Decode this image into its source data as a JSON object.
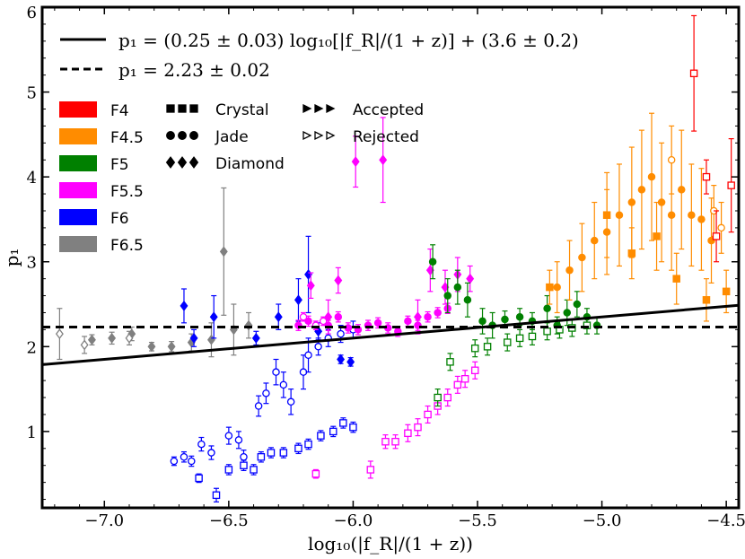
{
  "chart_data": {
    "type": "scatter",
    "title": "",
    "xlabel": "log₁₀(|f_R|/(1 + z))",
    "ylabel": "p₁",
    "xlim": [
      -7.25,
      -4.45
    ],
    "ylim": [
      0.1,
      6.0
    ],
    "grid": false,
    "legend_placement": "top-left",
    "xticks": [
      -7.0,
      -6.5,
      -6.0,
      -5.5,
      -5.0,
      -4.5
    ],
    "xtick_labels": [
      "−7.0",
      "−6.5",
      "−6.0",
      "−5.5",
      "−5.0",
      "−4.5"
    ],
    "yticks": [
      1,
      2,
      3,
      4,
      5,
      6
    ],
    "ytick_labels": [
      "1",
      "2",
      "3",
      "4",
      "5",
      "6"
    ],
    "fit_lines": [
      {
        "label": "p₁ = (0.25 ± 0.03) log₁₀[|f_R|/(1 + z)] + (3.6 ± 0.2)",
        "style": "solid",
        "slope": 0.25,
        "intercept": 3.6
      },
      {
        "label": "p₁ = 2.23 ± 0.02",
        "style": "dashed",
        "slope": 0,
        "intercept": 2.23
      }
    ],
    "color_legend": [
      {
        "name": "F4",
        "color": "#ff0000"
      },
      {
        "name": "F4.5",
        "color": "#ff8c00"
      },
      {
        "name": "F5",
        "color": "#008000"
      },
      {
        "name": "F5.5",
        "color": "#ff00ff"
      },
      {
        "name": "F6",
        "color": "#0000ff"
      },
      {
        "name": "F6.5",
        "color": "#808080"
      }
    ],
    "marker_legend": [
      {
        "name": "Crystal",
        "marker": "square"
      },
      {
        "name": "Jade",
        "marker": "circle"
      },
      {
        "name": "Diamond",
        "marker": "diamond"
      }
    ],
    "fill_legend": [
      {
        "name": "Accepted",
        "filled": true
      },
      {
        "name": "Rejected",
        "filled": false
      }
    ],
    "series": [
      {
        "name": "F6.5",
        "color": "#808080",
        "marker": "diamond",
        "filled": true,
        "x": [
          -7.05,
          -6.97,
          -6.89,
          -6.81,
          -6.73,
          -6.65,
          -6.57,
          -6.52,
          -6.48,
          -6.42
        ],
        "y": [
          2.08,
          2.1,
          2.15,
          2.0,
          2.0,
          2.05,
          2.08,
          3.12,
          2.2,
          2.25
        ],
        "err": [
          0.06,
          0.07,
          0.08,
          0.05,
          0.06,
          0.1,
          0.2,
          0.75,
          0.3,
          0.15
        ]
      },
      {
        "name": "F6.5",
        "color": "#808080",
        "marker": "diamond",
        "filled": false,
        "x": [
          -7.18,
          -7.08,
          -6.9
        ],
        "y": [
          2.15,
          2.02,
          2.1
        ],
        "err": [
          0.3,
          0.1,
          0.08
        ]
      },
      {
        "name": "F6",
        "color": "#0000ff",
        "marker": "diamond",
        "filled": true,
        "x": [
          -6.68,
          -6.64,
          -6.56,
          -6.39,
          -6.3,
          -6.22,
          -6.18,
          -6.14,
          -6.05,
          -6.01
        ],
        "y": [
          2.48,
          2.1,
          2.35,
          2.1,
          2.35,
          2.55,
          2.85,
          2.18,
          1.85,
          1.82
        ],
        "err": [
          0.2,
          0.1,
          0.25,
          0.08,
          0.15,
          0.25,
          0.45,
          0.1,
          0.05,
          0.05
        ]
      },
      {
        "name": "F6",
        "color": "#0000ff",
        "marker": "circle",
        "filled": false,
        "x": [
          -6.72,
          -6.68,
          -6.65,
          -6.61,
          -6.57,
          -6.5,
          -6.46,
          -6.44,
          -6.38,
          -6.35,
          -6.31,
          -6.28,
          -6.25,
          -6.2,
          -6.18,
          -6.14,
          -6.1,
          -6.05,
          -6.0
        ],
        "y": [
          0.65,
          0.7,
          0.65,
          0.85,
          0.75,
          0.95,
          0.9,
          0.7,
          1.3,
          1.45,
          1.7,
          1.55,
          1.35,
          1.7,
          1.9,
          2.0,
          2.1,
          2.15,
          2.2
        ],
        "err": [
          0.05,
          0.06,
          0.06,
          0.08,
          0.08,
          0.1,
          0.1,
          0.08,
          0.12,
          0.12,
          0.15,
          0.15,
          0.15,
          0.2,
          0.2,
          0.1,
          0.1,
          0.1,
          0.1
        ]
      },
      {
        "name": "F6",
        "color": "#0000ff",
        "marker": "square",
        "filled": false,
        "x": [
          -6.62,
          -6.55,
          -6.5,
          -6.44,
          -6.4,
          -6.37,
          -6.33,
          -6.28,
          -6.22,
          -6.18,
          -6.13,
          -6.08,
          -6.04,
          -6.0
        ],
        "y": [
          0.45,
          0.25,
          0.55,
          0.6,
          0.55,
          0.7,
          0.75,
          0.75,
          0.8,
          0.85,
          0.95,
          1.0,
          1.1,
          1.05
        ],
        "err": [
          0.05,
          0.08,
          0.06,
          0.06,
          0.06,
          0.06,
          0.06,
          0.06,
          0.06,
          0.06,
          0.06,
          0.06,
          0.06,
          0.06
        ]
      },
      {
        "name": "F5.5",
        "color": "#ff00ff",
        "marker": "diamond",
        "filled": true,
        "x": [
          -6.17,
          -6.1,
          -6.06,
          -5.99,
          -5.88,
          -5.74,
          -5.69,
          -5.63,
          -5.58,
          -5.53
        ],
        "y": [
          2.72,
          2.35,
          2.78,
          4.18,
          4.2,
          2.35,
          2.9,
          2.7,
          2.85,
          2.8
        ],
        "err": [
          0.15,
          0.2,
          0.15,
          0.3,
          0.5,
          0.2,
          0.25,
          0.2,
          0.2,
          0.15
        ]
      },
      {
        "name": "F5.5",
        "color": "#ff00ff",
        "marker": "circle",
        "filled": true,
        "x": [
          -6.22,
          -6.18,
          -6.1,
          -6.06,
          -6.02,
          -5.98,
          -5.94,
          -5.9,
          -5.86,
          -5.82,
          -5.78,
          -5.74,
          -5.7,
          -5.66,
          -5.62
        ],
        "y": [
          2.25,
          2.3,
          2.25,
          2.35,
          2.22,
          2.2,
          2.25,
          2.28,
          2.22,
          2.18,
          2.3,
          2.25,
          2.35,
          2.4,
          2.45
        ],
        "err": [
          0.06,
          0.06,
          0.06,
          0.06,
          0.06,
          0.06,
          0.06,
          0.06,
          0.06,
          0.06,
          0.06,
          0.06,
          0.06,
          0.06,
          0.06
        ]
      },
      {
        "name": "F5.5",
        "color": "#ff00ff",
        "marker": "circle",
        "filled": false,
        "x": [
          -6.2,
          -6.15,
          -6.12
        ],
        "y": [
          2.35,
          2.25,
          2.3
        ],
        "err": [
          0.05,
          0.05,
          0.05
        ]
      },
      {
        "name": "F5.5",
        "color": "#ff00ff",
        "marker": "square",
        "filled": false,
        "x": [
          -6.15,
          -5.93,
          -5.87,
          -5.83,
          -5.78,
          -5.74,
          -5.7,
          -5.66,
          -5.62,
          -5.58,
          -5.55,
          -5.51
        ],
        "y": [
          0.5,
          0.55,
          0.88,
          0.88,
          0.98,
          1.05,
          1.2,
          1.3,
          1.4,
          1.55,
          1.62,
          1.72
        ],
        "err": [
          0.05,
          0.1,
          0.08,
          0.08,
          0.1,
          0.1,
          0.1,
          0.1,
          0.1,
          0.1,
          0.1,
          0.1
        ]
      },
      {
        "name": "F5",
        "color": "#008000",
        "marker": "circle",
        "filled": true,
        "x": [
          -5.68,
          -5.62,
          -5.58,
          -5.54,
          -5.48,
          -5.44,
          -5.39,
          -5.33,
          -5.28,
          -5.22,
          -5.18,
          -5.14,
          -5.1,
          -5.06,
          -5.02
        ],
        "y": [
          3.0,
          2.6,
          2.7,
          2.55,
          2.3,
          2.25,
          2.32,
          2.35,
          2.3,
          2.45,
          2.25,
          2.4,
          2.5,
          2.35,
          2.25
        ],
        "err": [
          0.2,
          0.2,
          0.2,
          0.2,
          0.15,
          0.15,
          0.1,
          0.1,
          0.1,
          0.15,
          0.1,
          0.15,
          0.15,
          0.1,
          0.1
        ]
      },
      {
        "name": "F5",
        "color": "#008000",
        "marker": "square",
        "filled": false,
        "x": [
          -5.66,
          -5.61,
          -5.51,
          -5.46,
          -5.38,
          -5.33,
          -5.28,
          -5.22,
          -5.17,
          -5.12,
          -5.06
        ],
        "y": [
          1.4,
          1.82,
          1.98,
          2.0,
          2.05,
          2.1,
          2.12,
          2.18,
          2.2,
          2.22,
          2.25
        ],
        "err": [
          0.1,
          0.1,
          0.1,
          0.1,
          0.1,
          0.1,
          0.1,
          0.1,
          0.1,
          0.1,
          0.1
        ]
      },
      {
        "name": "F4.5",
        "color": "#ff8c00",
        "marker": "circle",
        "filled": true,
        "x": [
          -5.18,
          -5.13,
          -5.08,
          -5.03,
          -4.98,
          -4.93,
          -4.88,
          -4.84,
          -4.8,
          -4.76,
          -4.72,
          -4.68,
          -4.64,
          -4.6,
          -4.56
        ],
        "y": [
          2.7,
          2.9,
          3.05,
          3.25,
          3.35,
          3.55,
          3.7,
          3.85,
          4.0,
          3.7,
          3.55,
          3.85,
          3.55,
          3.5,
          3.25
        ],
        "err": [
          0.3,
          0.35,
          0.4,
          0.45,
          0.5,
          0.6,
          0.65,
          0.7,
          0.75,
          0.7,
          0.65,
          0.7,
          0.6,
          0.6,
          0.5
        ]
      },
      {
        "name": "F4.5",
        "color": "#ff8c00",
        "marker": "circle",
        "filled": false,
        "x": [
          -4.72,
          -4.55,
          -4.52
        ],
        "y": [
          4.2,
          3.6,
          3.4
        ],
        "err": [
          0.4,
          0.3,
          0.3
        ]
      },
      {
        "name": "F4.5",
        "color": "#ff8c00",
        "marker": "square",
        "filled": true,
        "x": [
          -5.21,
          -4.98,
          -4.88,
          -4.78,
          -4.7,
          -4.58,
          -4.5
        ],
        "y": [
          2.7,
          3.55,
          3.1,
          3.3,
          2.8,
          2.55,
          2.65
        ],
        "err": [
          0.2,
          0.5,
          0.3,
          0.4,
          0.3,
          0.25,
          0.25
        ]
      },
      {
        "name": "F4",
        "color": "#ff0000",
        "marker": "square",
        "filled": false,
        "x": [
          -4.63,
          -4.58,
          -4.54,
          -4.48
        ],
        "y": [
          5.22,
          4.0,
          3.3,
          3.9
        ],
        "err": [
          0.68,
          0.2,
          0.3,
          0.55
        ]
      }
    ]
  }
}
